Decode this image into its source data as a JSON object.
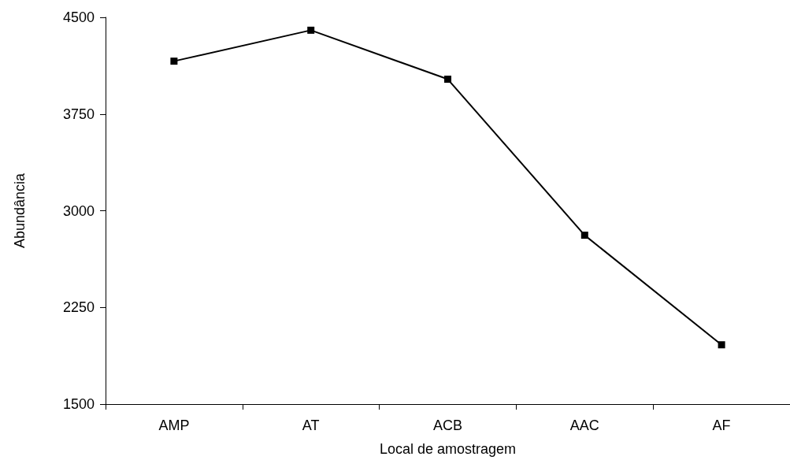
{
  "chart_data": {
    "type": "line",
    "xlabel": "Local de amostragem",
    "ylabel": "Abundância",
    "categories": [
      "AMP",
      "AT",
      "ACB",
      "AAC",
      "AF"
    ],
    "series": [
      {
        "color": "#000000",
        "values": [
          4160,
          4400,
          4020,
          2810,
          1960
        ]
      }
    ],
    "ylim": [
      1500,
      4500
    ],
    "yticks": [
      1500,
      2250,
      3000,
      3750,
      4500
    ],
    "grid": false,
    "marker": "square",
    "line_style": "solid"
  }
}
